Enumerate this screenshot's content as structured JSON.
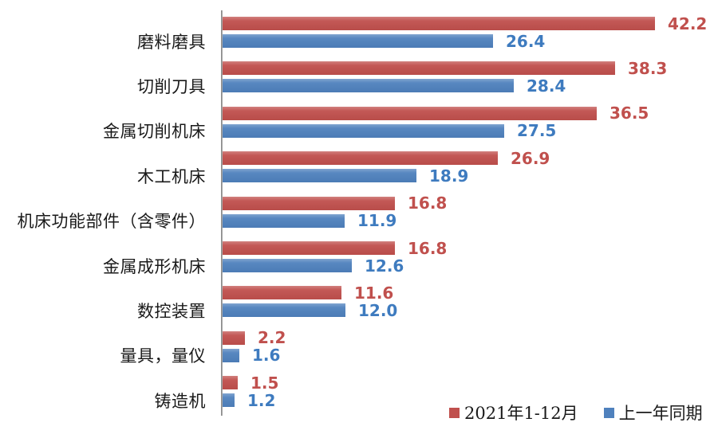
{
  "chart_data": {
    "type": "bar",
    "orientation": "horizontal",
    "title": "",
    "xlabel": "",
    "ylabel": "",
    "xlim": [
      0,
      42.2
    ],
    "grid": false,
    "value_labels": true,
    "legend_position": "bottom-right",
    "categories": [
      "磨料磨具",
      "切削刀具",
      "金属切削机床",
      "木工机床",
      "机床功能部件（含零件）",
      "金属成形机床",
      "数控装置",
      "量具，量仪",
      "铸造机"
    ],
    "series": [
      {
        "name": "2021年1-12月",
        "color": "#c0504d",
        "label_color": "#c0504d",
        "values": [
          42.2,
          38.3,
          36.5,
          26.9,
          16.8,
          16.8,
          11.6,
          2.2,
          1.5
        ]
      },
      {
        "name": "上一年同期",
        "color": "#4f81bd",
        "label_color": "#3e7bbf",
        "values": [
          26.4,
          28.4,
          27.5,
          18.9,
          11.9,
          12.6,
          12.0,
          1.6,
          1.2
        ]
      }
    ]
  },
  "colors": {
    "axis_line": "#a6a6a6",
    "category_text": "#1a1a1a",
    "background": "#ffffff"
  }
}
